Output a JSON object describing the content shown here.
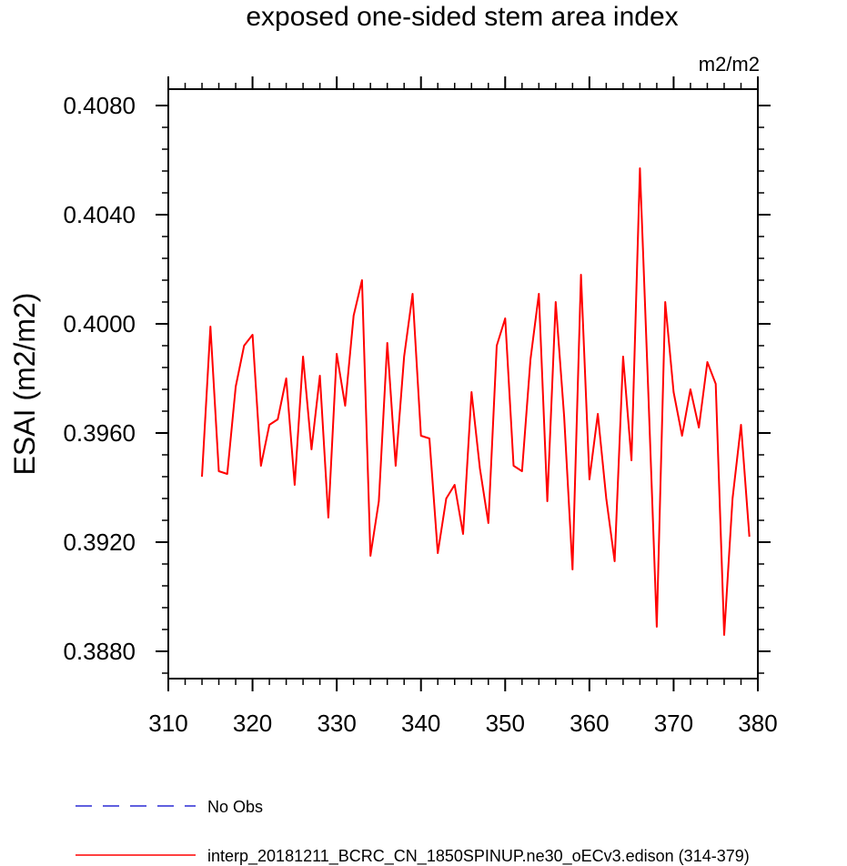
{
  "chart_data": {
    "type": "line",
    "title": "exposed one-sided stem area index",
    "units_label": "m2/m2",
    "ylabel": "ESAI  (m2/m2)",
    "xlabel": "",
    "xlim": [
      310,
      380
    ],
    "ylim": [
      0.387,
      0.4086
    ],
    "x_ticks": [
      310,
      320,
      330,
      340,
      350,
      360,
      370,
      380
    ],
    "x_tick_labels": [
      "310",
      "320",
      "330",
      "340",
      "350",
      "360",
      "370",
      "380"
    ],
    "y_ticks": [
      0.388,
      0.392,
      0.396,
      0.4,
      0.404,
      0.408
    ],
    "y_tick_labels": [
      "0.3880",
      "0.3920",
      "0.3960",
      "0.4000",
      "0.4040",
      "0.4080"
    ],
    "grid": false,
    "series": [
      {
        "name": "interp_20181211_BCRC_CN_1850SPINUP.ne30_oECv3.edison (314-379)",
        "color": "#ff0000",
        "x": [
          314,
          315,
          316,
          317,
          318,
          319,
          320,
          321,
          322,
          323,
          324,
          325,
          326,
          327,
          328,
          329,
          330,
          331,
          332,
          333,
          334,
          335,
          336,
          337,
          338,
          339,
          340,
          341,
          342,
          343,
          344,
          345,
          346,
          347,
          348,
          349,
          350,
          351,
          352,
          353,
          354,
          355,
          356,
          357,
          358,
          359,
          360,
          361,
          362,
          363,
          364,
          365,
          366,
          367,
          368,
          369,
          370,
          371,
          372,
          373,
          374,
          375,
          376,
          377,
          378,
          379
        ],
        "y": [
          0.3944,
          0.3999,
          0.3946,
          0.3945,
          0.3977,
          0.3992,
          0.3996,
          0.3948,
          0.3963,
          0.3965,
          0.398,
          0.3941,
          0.3988,
          0.3954,
          0.3981,
          0.3929,
          0.3989,
          0.397,
          0.4003,
          0.4016,
          0.3915,
          0.3935,
          0.3993,
          0.3948,
          0.3988,
          0.4011,
          0.3959,
          0.3958,
          0.3916,
          0.3936,
          0.3941,
          0.3923,
          0.3975,
          0.3947,
          0.3927,
          0.3992,
          0.4002,
          0.3948,
          0.3946,
          0.3987,
          0.4011,
          0.3935,
          0.4008,
          0.3966,
          0.391,
          0.4018,
          0.3943,
          0.3967,
          0.3936,
          0.3913,
          0.3988,
          0.395,
          0.4057,
          0.3974,
          0.3889,
          0.4008,
          0.3975,
          0.3959,
          0.3976,
          0.3962,
          0.3986,
          0.3978,
          0.3886,
          0.3936,
          0.3963,
          0.3922
        ]
      },
      {
        "name": "No Obs",
        "color": "#0000cc",
        "dashed": true,
        "x": [],
        "y": []
      }
    ],
    "legend_position": "bottom"
  }
}
